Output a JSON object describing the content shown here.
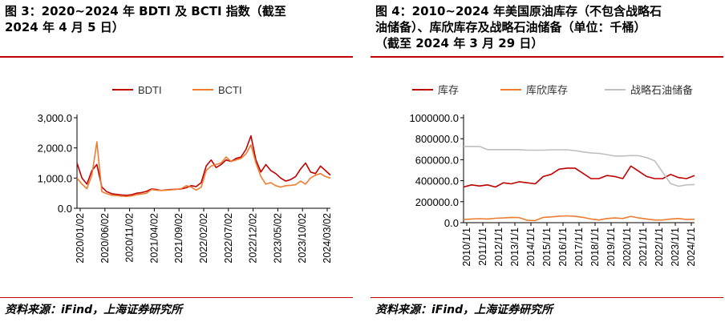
{
  "left": {
    "title_line1": "图 3：2020~2024 年 BDTI 及 BCTI 指数（截至",
    "title_line2": "2024 年 4 月 5 日）",
    "source": "资料来源：iFind，上海证券研究所"
  },
  "right": {
    "title_line1": "图 4：2010~2024 年美国原油库存（不包含战略石",
    "title_line2": "油储备）、库欣库存及战略石油储备（单位：千桶）",
    "title_line3": "（截至 2024 年 3 月 29 日）",
    "source": "资料来源：iFind，上海证券研究所"
  },
  "colors": {
    "red": "#c00000",
    "orange": "#ed7d31",
    "gray": "#bfbfbf",
    "rule": "#c00000"
  },
  "chart_data": [
    {
      "type": "line",
      "legend_position": "top",
      "ylim": [
        0,
        3000
      ],
      "yticks": [
        "0.0",
        "1,000.0",
        "2,000.0",
        "3,000.0"
      ],
      "ytick_values": [
        0,
        1000,
        2000,
        3000
      ],
      "x_tick_labels": [
        "2020/01/02",
        "2020/06/02",
        "2020/11/02",
        "2021/04/02",
        "2021/09/02",
        "2022/02/02",
        "2022/07/02",
        "2022/12/02",
        "2023/05/02",
        "2023/10/02",
        "2024/03/02"
      ],
      "x": [
        "2020/01",
        "2020/02",
        "2020/03",
        "2020/04",
        "2020/05",
        "2020/06",
        "2020/07",
        "2020/08",
        "2020/09",
        "2020/10",
        "2020/11",
        "2020/12",
        "2021/01",
        "2021/02",
        "2021/03",
        "2021/04",
        "2021/05",
        "2021/06",
        "2021/07",
        "2021/08",
        "2021/09",
        "2021/10",
        "2021/11",
        "2021/12",
        "2022/01",
        "2022/02",
        "2022/03",
        "2022/04",
        "2022/05",
        "2022/06",
        "2022/07",
        "2022/08",
        "2022/09",
        "2022/10",
        "2022/11",
        "2022/12",
        "2023/01",
        "2023/02",
        "2023/03",
        "2023/04",
        "2023/05",
        "2023/06",
        "2023/07",
        "2023/08",
        "2023/09",
        "2023/10",
        "2023/11",
        "2023/12",
        "2024/01",
        "2024/02",
        "2024/03",
        "2024/04"
      ],
      "series": [
        {
          "name": "BDTI",
          "color": "#c00000",
          "values": [
            1500,
            1000,
            800,
            1250,
            1450,
            700,
            550,
            480,
            460,
            440,
            430,
            450,
            500,
            520,
            560,
            640,
            620,
            590,
            610,
            620,
            630,
            640,
            680,
            750,
            720,
            850,
            1400,
            1600,
            1350,
            1450,
            1600,
            1550,
            1650,
            1700,
            1950,
            2400,
            1600,
            1200,
            1450,
            1250,
            1150,
            1000,
            900,
            950,
            1050,
            1300,
            1500,
            1200,
            1150,
            1400,
            1250,
            1100
          ]
        },
        {
          "name": "BCTI",
          "color": "#ed7d31",
          "values": [
            1000,
            800,
            650,
            1100,
            2200,
            550,
            480,
            430,
            420,
            400,
            390,
            410,
            450,
            470,
            500,
            620,
            600,
            590,
            600,
            610,
            620,
            650,
            750,
            700,
            600,
            700,
            1250,
            1400,
            1450,
            1500,
            1700,
            1550,
            1600,
            1650,
            1800,
            2100,
            1500,
            1050,
            800,
            850,
            750,
            700,
            750,
            760,
            780,
            900,
            800,
            1000,
            1100,
            1150,
            1050,
            1000
          ]
        }
      ]
    },
    {
      "type": "line",
      "legend_position": "top",
      "ylim": [
        0,
        1000000
      ],
      "yticks": [
        "0.0",
        "200000.0",
        "400000.0",
        "600000.0",
        "800000.0",
        "1000000.0"
      ],
      "ytick_values": [
        0,
        200000,
        400000,
        600000,
        800000,
        1000000
      ],
      "x_tick_labels": [
        "2010/1/1",
        "2011/1/1",
        "2012/1/1",
        "2013/1/1",
        "2014/1/1",
        "2015/1/1",
        "2016/1/1",
        "2017/1/1",
        "2018/1/1",
        "2019/1/1",
        "2020/1/1",
        "2021/1/1",
        "2022/1/1",
        "2023/1/1",
        "2024/1/1"
      ],
      "x": [
        2010.0,
        2010.5,
        2011.0,
        2011.5,
        2012.0,
        2012.5,
        2013.0,
        2013.5,
        2014.0,
        2014.5,
        2015.0,
        2015.5,
        2016.0,
        2016.5,
        2017.0,
        2017.5,
        2018.0,
        2018.5,
        2019.0,
        2019.5,
        2020.0,
        2020.5,
        2021.0,
        2021.5,
        2022.0,
        2022.5,
        2023.0,
        2023.5,
        2024.0,
        2024.25
      ],
      "series": [
        {
          "name": "库存",
          "color": "#c00000",
          "values": [
            340000,
            360000,
            350000,
            360000,
            340000,
            380000,
            370000,
            390000,
            380000,
            370000,
            440000,
            460000,
            510000,
            520000,
            520000,
            470000,
            420000,
            420000,
            450000,
            440000,
            420000,
            540000,
            490000,
            440000,
            420000,
            420000,
            460000,
            430000,
            420000,
            450000
          ]
        },
        {
          "name": "库欣库存",
          "color": "#ed7d31",
          "values": [
            30000,
            35000,
            38000,
            35000,
            42000,
            45000,
            50000,
            48000,
            22000,
            20000,
            50000,
            55000,
            62000,
            65000,
            60000,
            50000,
            35000,
            25000,
            40000,
            45000,
            40000,
            60000,
            45000,
            35000,
            25000,
            25000,
            35000,
            40000,
            30000,
            33000
          ]
        },
        {
          "name": "战略石油储备",
          "color": "#bfbfbf",
          "values": [
            727000,
            727000,
            726000,
            696000,
            696000,
            696000,
            696000,
            696000,
            691000,
            691000,
            691000,
            695000,
            695000,
            695000,
            686000,
            674000,
            665000,
            660000,
            649000,
            635000,
            635000,
            640000,
            638000,
            620000,
            590000,
            480000,
            372000,
            347000,
            360000,
            363000
          ]
        }
      ]
    }
  ]
}
